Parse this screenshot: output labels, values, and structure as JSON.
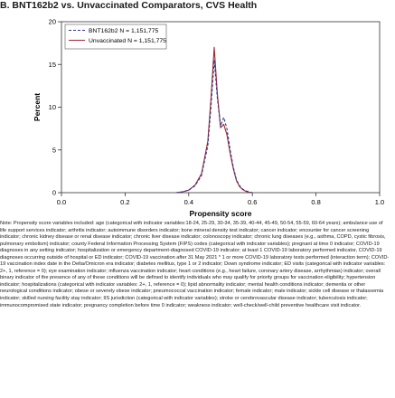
{
  "page": {
    "title": "B. BNT162b2 vs. Unvaccinated Comparators, CVS Health",
    "note": "Note: Propensity score variables included: age (categorical with indicator variables:18-24, 25-29, 30-34, 35-39, 40-44, 45-49, 50-54, 55-59, 60-64 years); ambulance use of life support services indicator; arthritis indicator; autoimmune disorders indicator; bone mineral density test indicator; cancer indicator; encounter for cancer screening indicator; chronic kidney disease or renal disease indicator; chronic liver disease indicator; colonoscopy indicator; chronic lung diseases (e.g., asthma, COPD, cystic fibrosis, pulmonary embolism) indicator; county Federal Information Processing System (FIPS) codes (categorical with indicator variables); pregnant at time 0 indicator; COVID-19 diagnoses in any setting indicator; hospitalization or emergency department-diagnosed COVID-19 indicator; at least 1 COVID-19 laboratory performed indicator, COVID-19 diagnoses occurring outside of hospital or ED indicator; COVID-19 vaccination after 31 May 2021 * 1 or more COVID-19 laboratory tests performed (interaction term); COVID-19 vaccination index date in the Delta/Omicron era indicator; diabetes mellitus, type 1 or 2 indicator; Down syndrome indicator; ED visits (categorical with indicator variables: 2+, 1, reference = 0); eye examination indicator; influenza vaccination indicator; heart conditions (e.g., heart failure, coronary artery disease, arrhythmias) indicator; overall binary indicator of the presence of any of these conditions will be defined to identify individuals who may qualify for priority groups for vaccination eligibility; hypertension indicator; hospitalizations (categorical with indicator variables: 2+, 1, reference = 0); lipid abnormality indicator; mental health conditions indicator; dementia or other neurological conditions indicator; obese or severely obese indicator; pneumococcal vaccination indicator; female indicator; male indicator; sickle cell disease or thalassemia indicator; skilled nursing facility stay indicator; IIS jurisdiction (categorical with indicator variables); stroke or cerebrovascular disease indicator; tuberculosis indicator; immunocompromised state indicator; pregnancy completion before time 0 indicator; weakness indicator; well-check/well-child preventive healthcare visit indicator."
  },
  "chart_data": {
    "type": "line",
    "xlabel": "Propensity score",
    "ylabel": "Percent",
    "xlim": [
      0,
      1
    ],
    "ylim": [
      0,
      20
    ],
    "xticks": [
      "0.0",
      "0.2",
      "0.4",
      "0.6",
      "0.8",
      "1.0"
    ],
    "yticks": [
      "0",
      "5",
      "10",
      "15",
      "20"
    ],
    "legend_position": "top-left",
    "series": [
      {
        "name": "BNT162b2 N = 1,151,775",
        "color": "#2b3a8f",
        "style": "dashed",
        "x": [
          0.36,
          0.38,
          0.4,
          0.42,
          0.44,
          0.46,
          0.47,
          0.48,
          0.49,
          0.5,
          0.51,
          0.52,
          0.53,
          0.54,
          0.55,
          0.56,
          0.57,
          0.58,
          0.59,
          0.6
        ],
        "y": [
          0.0,
          0.1,
          0.3,
          0.8,
          2.0,
          5.5,
          10.0,
          15.5,
          11.0,
          7.8,
          8.8,
          7.5,
          5.0,
          3.0,
          1.5,
          0.8,
          0.4,
          0.2,
          0.1,
          0.0
        ]
      },
      {
        "name": "Unvaccinated N = 1,151,775",
        "color": "#a32630",
        "style": "solid",
        "x": [
          0.36,
          0.38,
          0.4,
          0.42,
          0.44,
          0.46,
          0.47,
          0.48,
          0.49,
          0.5,
          0.51,
          0.52,
          0.53,
          0.54,
          0.55,
          0.56,
          0.57,
          0.58,
          0.59,
          0.6
        ],
        "y": [
          0.0,
          0.1,
          0.3,
          0.9,
          2.2,
          6.0,
          11.0,
          17.0,
          11.5,
          7.6,
          8.0,
          6.8,
          4.6,
          2.8,
          1.4,
          0.7,
          0.35,
          0.15,
          0.05,
          0.0
        ]
      }
    ]
  }
}
